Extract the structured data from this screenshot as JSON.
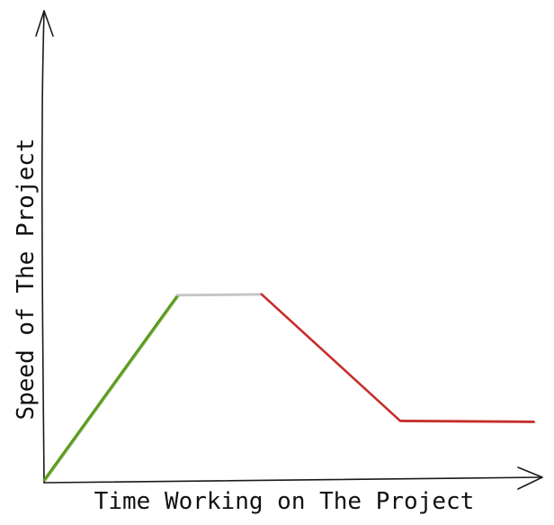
{
  "chart_data": {
    "type": "line",
    "title": "",
    "xlabel": "Time Working on The Project",
    "ylabel": "Speed of The Project",
    "xlim": [
      0,
      100
    ],
    "ylim": [
      0,
      100
    ],
    "grid": false,
    "legend": "none",
    "axis_color": "#1a1a1a",
    "series": [
      {
        "points": [
          [
            0,
            0
          ],
          [
            27,
            42.5
          ]
        ],
        "color": "#5a9a1a"
      },
      {
        "points": [
          [
            27,
            42.5
          ],
          [
            44,
            42.7
          ]
        ],
        "color": "#c4c4c4"
      },
      {
        "points": [
          [
            44,
            42.7
          ],
          [
            72,
            13.6
          ]
        ],
        "color": "#c62e2a"
      },
      {
        "points": [
          [
            72,
            13.6
          ],
          [
            99,
            13.4
          ]
        ],
        "color": "#c62e2a"
      }
    ]
  }
}
